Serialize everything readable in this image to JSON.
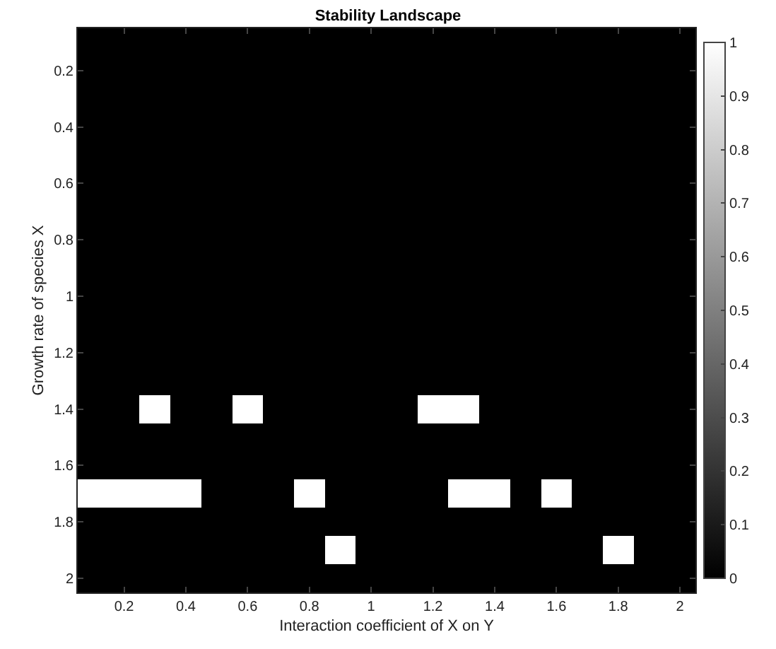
{
  "chart_data": {
    "type": "heatmap",
    "title": "Stability Landscape",
    "xlabel": "Interaction coefficient of X on Y",
    "ylabel": "Growth rate of species X",
    "x": [
      0.1,
      0.2,
      0.3,
      0.4,
      0.5,
      0.6,
      0.7,
      0.8,
      0.9,
      1.0,
      1.1,
      1.2,
      1.3,
      1.4,
      1.5,
      1.6,
      1.7,
      1.8,
      1.9,
      2.0
    ],
    "cells": [
      [
        0,
        0,
        0,
        0,
        0,
        0,
        0,
        0,
        0,
        0,
        0,
        0,
        0,
        0,
        0,
        0,
        0,
        0,
        0,
        0
      ],
      [
        0,
        0,
        0,
        0,
        0,
        0,
        0,
        0,
        0,
        0,
        0,
        0,
        0,
        0,
        0,
        0,
        0,
        0,
        0,
        0
      ],
      [
        0,
        0,
        0,
        0,
        0,
        0,
        0,
        0,
        0,
        0,
        0,
        0,
        0,
        0,
        0,
        0,
        0,
        0,
        0,
        0
      ],
      [
        0,
        0,
        0,
        0,
        0,
        0,
        0,
        0,
        0,
        0,
        0,
        0,
        0,
        0,
        0,
        0,
        0,
        0,
        0,
        0
      ],
      [
        0,
        0,
        0,
        0,
        0,
        0,
        0,
        0,
        0,
        0,
        0,
        0,
        0,
        0,
        0,
        0,
        0,
        0,
        0,
        0
      ],
      [
        0,
        0,
        0,
        0,
        0,
        0,
        0,
        0,
        0,
        0,
        0,
        0,
        0,
        0,
        0,
        0,
        0,
        0,
        0,
        0
      ],
      [
        0,
        0,
        0,
        0,
        0,
        0,
        0,
        0,
        0,
        0,
        0,
        0,
        0,
        0,
        0,
        0,
        0,
        0,
        0,
        0
      ],
      [
        0,
        0,
        0,
        0,
        0,
        0,
        0,
        0,
        0,
        0,
        0,
        0,
        0,
        0,
        0,
        0,
        0,
        0,
        0,
        0
      ],
      [
        0,
        0,
        0,
        0,
        0,
        0,
        0,
        0,
        0,
        0,
        0,
        0,
        0,
        0,
        0,
        0,
        0,
        0,
        0,
        0
      ],
      [
        0,
        0,
        0,
        0,
        0,
        0,
        0,
        0,
        0,
        0,
        0,
        0,
        0,
        0,
        0,
        0,
        0,
        0,
        0,
        0
      ],
      [
        0,
        0,
        0,
        0,
        0,
        0,
        0,
        0,
        0,
        0,
        0,
        0,
        0,
        0,
        0,
        0,
        0,
        0,
        0,
        0
      ],
      [
        0,
        0,
        0,
        0,
        0,
        0,
        0,
        0,
        0,
        0,
        0,
        0,
        0,
        0,
        0,
        0,
        0,
        0,
        0,
        0
      ],
      [
        0,
        0,
        0,
        0,
        0,
        0,
        0,
        0,
        0,
        0,
        0,
        0,
        0,
        0,
        0,
        0,
        0,
        0,
        0,
        0
      ],
      [
        0,
        0,
        1,
        0,
        0,
        1,
        0,
        0,
        0,
        0,
        0,
        1,
        1,
        0,
        0,
        0,
        0,
        0,
        0,
        0
      ],
      [
        0,
        0,
        0,
        0,
        0,
        0,
        0,
        0,
        0,
        0,
        0,
        0,
        0,
        0,
        0,
        0,
        0,
        0,
        0,
        0
      ],
      [
        0,
        0,
        0,
        0,
        0,
        0,
        0,
        0,
        0,
        0,
        0,
        0,
        0,
        0,
        0,
        0,
        0,
        0,
        0,
        0
      ],
      [
        1,
        1,
        1,
        1,
        0,
        0,
        0,
        1,
        0,
        0,
        0,
        0,
        1,
        1,
        0,
        1,
        0,
        0,
        0,
        0
      ],
      [
        0,
        0,
        0,
        0,
        0,
        0,
        0,
        0,
        0,
        0,
        0,
        0,
        0,
        0,
        0,
        0,
        0,
        0,
        0,
        0
      ],
      [
        0,
        0,
        0,
        0,
        0,
        0,
        0,
        0,
        1,
        0,
        0,
        0,
        0,
        0,
        0,
        0,
        0,
        1,
        0,
        0
      ],
      [
        0,
        0,
        0,
        0,
        0,
        0,
        0,
        0,
        0,
        0,
        0,
        0,
        0,
        0,
        0,
        0,
        0,
        0,
        0,
        0
      ]
    ],
    "xlim": [
      0.05,
      2.05
    ],
    "xticks": [
      0.2,
      0.4,
      0.6,
      0.8,
      1,
      1.2,
      1.4,
      1.6,
      1.8,
      2
    ],
    "ylim": [
      2.05,
      0.05
    ],
    "yticks": [
      0.2,
      0.4,
      0.6,
      0.8,
      1,
      1.2,
      1.4,
      1.6,
      1.8,
      2
    ],
    "clim": [
      0,
      1
    ],
    "cticks": [
      0,
      0.1,
      0.2,
      0.3,
      0.4,
      0.5,
      0.6,
      0.7,
      0.8,
      0.9,
      1
    ]
  }
}
